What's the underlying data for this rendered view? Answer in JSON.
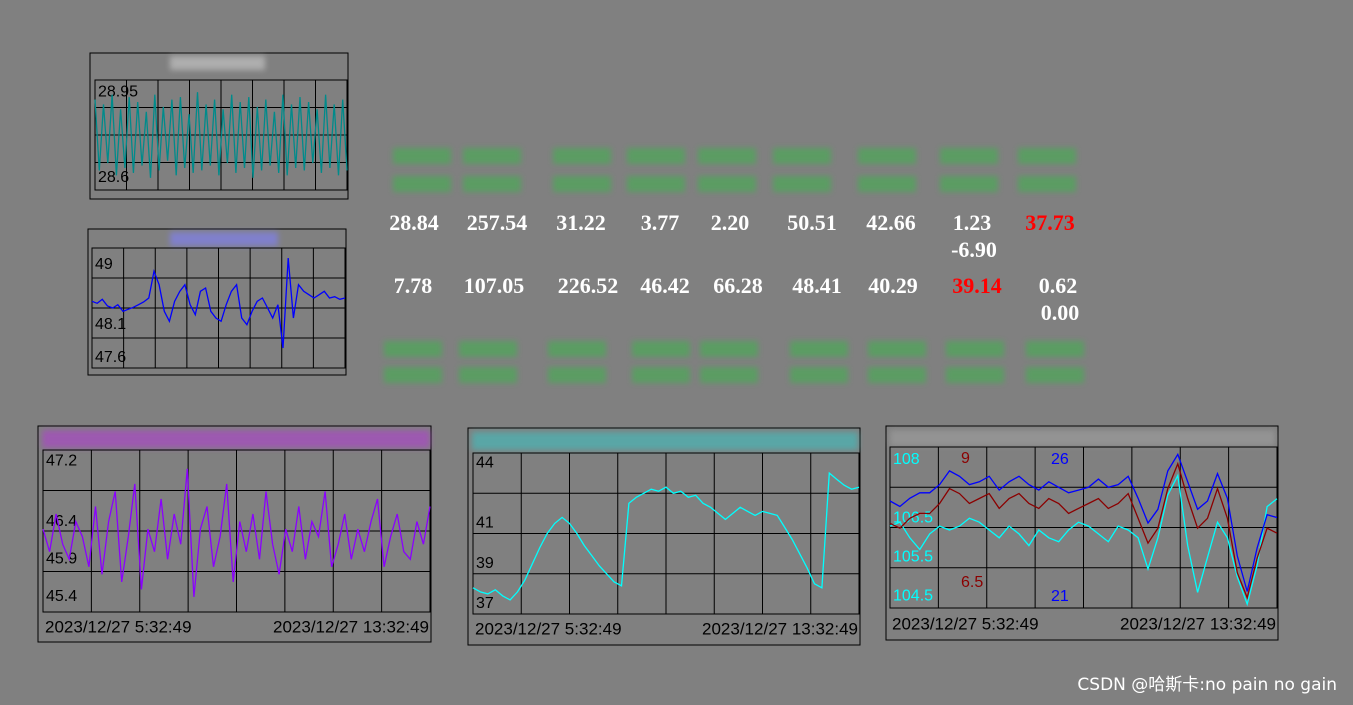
{
  "panels": [
    {
      "ylim": [
        28.55,
        29.0
      ],
      "yticks": [
        28.95,
        28.6
      ],
      "time_labels": [],
      "series": [
        {
          "color": "#008b8b",
          "values": [
            28.92,
            28.63,
            28.9,
            28.66,
            28.94,
            28.61,
            28.88,
            28.64,
            28.93,
            28.62,
            28.91,
            28.65,
            28.87,
            28.6,
            28.94,
            28.63,
            28.89,
            28.67,
            28.92,
            28.61,
            28.93,
            28.64,
            28.86,
            28.62,
            28.95,
            28.63,
            28.9,
            28.65,
            28.92,
            28.61,
            28.88,
            28.66,
            28.94,
            28.62,
            28.91,
            28.64,
            28.93,
            28.6,
            28.89,
            28.63,
            28.92,
            28.65,
            28.87,
            28.62,
            28.94,
            28.61,
            28.9,
            28.64,
            28.93,
            28.63,
            28.91,
            28.66,
            28.88,
            28.62,
            28.94,
            28.64,
            28.9,
            28.61,
            28.92,
            28.63
          ]
        }
      ]
    },
    {
      "ylim": [
        47.45,
        49.25
      ],
      "yticks": [
        49,
        48.1,
        47.6
      ],
      "time_labels": [],
      "series": [
        {
          "color": "#0000ff",
          "values": [
            48.45,
            48.42,
            48.48,
            48.38,
            48.35,
            48.4,
            48.3,
            48.33,
            48.36,
            48.4,
            48.44,
            48.5,
            48.9,
            48.7,
            48.3,
            48.15,
            48.45,
            48.6,
            48.7,
            48.4,
            48.25,
            48.6,
            48.65,
            48.3,
            48.2,
            48.15,
            48.4,
            48.6,
            48.7,
            48.2,
            48.1,
            48.3,
            48.45,
            48.5,
            48.35,
            48.2,
            48.4,
            47.75,
            49.1,
            48.2,
            48.7,
            48.6,
            48.55,
            48.5,
            48.55,
            48.6,
            48.5,
            48.52,
            48.48,
            48.5
          ]
        }
      ]
    },
    {
      "ylim": [
        45.2,
        47.35
      ],
      "yticks": [
        47.2,
        46.4,
        45.9,
        45.4
      ],
      "time_labels": [
        "2023/12/27 5:32:49",
        "2023/12/27 13:32:49"
      ],
      "series": [
        {
          "color": "#8a00ff",
          "values": [
            46.3,
            46.0,
            46.5,
            46.1,
            45.9,
            46.4,
            46.2,
            45.8,
            46.6,
            45.7,
            46.4,
            46.8,
            45.6,
            46.2,
            46.9,
            45.5,
            46.3,
            46.0,
            46.7,
            45.9,
            46.5,
            46.1,
            47.1,
            45.4,
            46.3,
            46.6,
            45.8,
            46.2,
            46.9,
            45.6,
            46.4,
            46.0,
            46.5,
            45.9,
            46.8,
            46.1,
            45.7,
            46.3,
            46.0,
            46.6,
            45.9,
            46.4,
            46.2,
            46.8,
            45.8,
            46.1,
            46.5,
            45.9,
            46.3,
            46.0,
            46.4,
            46.7,
            45.8,
            46.2,
            46.5,
            46.0,
            45.9,
            46.4,
            46.1,
            46.6
          ]
        }
      ]
    },
    {
      "ylim": [
        36.5,
        44.5
      ],
      "yticks": [
        44,
        41,
        39,
        37
      ],
      "time_labels": [
        "2023/12/27 5:32:49",
        "2023/12/27 13:32:49"
      ],
      "series": [
        {
          "color": "#00ffff",
          "values": [
            37.8,
            37.6,
            37.5,
            37.7,
            37.4,
            37.2,
            37.6,
            38.2,
            39.0,
            39.8,
            40.5,
            41.0,
            41.3,
            41.0,
            40.5,
            39.9,
            39.4,
            38.9,
            38.5,
            38.1,
            37.9,
            42.0,
            42.3,
            42.5,
            42.7,
            42.6,
            42.8,
            42.5,
            42.6,
            42.3,
            42.4,
            42.0,
            41.8,
            41.5,
            41.2,
            41.5,
            41.8,
            41.6,
            41.4,
            41.6,
            41.5,
            41.4,
            40.8,
            40.2,
            39.5,
            38.8,
            38.0,
            37.8,
            43.5,
            43.2,
            42.9,
            42.7,
            42.8
          ]
        }
      ]
    },
    {
      "time_labels": [
        "2023/12/27 5:32:49",
        "2023/12/27 13:32:49"
      ],
      "series": [
        {
          "color": "#00ffff",
          "ylim": [
            104.2,
            108.33
          ],
          "yticks": [
            108,
            106.5,
            105.5,
            104.5
          ],
          "values": [
            106.3,
            106.4,
            106.0,
            105.7,
            106.1,
            106.3,
            106.2,
            106.3,
            106.5,
            106.4,
            106.2,
            106.0,
            106.3,
            106.1,
            105.8,
            106.2,
            106.0,
            105.9,
            106.2,
            106.4,
            106.3,
            106.1,
            105.9,
            106.3,
            106.2,
            106.0,
            105.2,
            106.0,
            107.1,
            107.6,
            105.8,
            104.6,
            105.5,
            106.4,
            106.0,
            105.0,
            104.3,
            105.3,
            106.8,
            107.0
          ]
        },
        {
          "color": "#8b0000",
          "ylim": [
            5.99,
            9.24
          ],
          "yticks": [
            9,
            6.5
          ],
          "values": [
            7.7,
            7.6,
            7.8,
            7.9,
            7.9,
            8.1,
            8.4,
            8.3,
            8.1,
            8.2,
            8.3,
            8.0,
            8.2,
            8.3,
            8.1,
            8.0,
            8.2,
            8.1,
            7.9,
            8.0,
            8.1,
            8.2,
            8.0,
            8.1,
            8.3,
            7.8,
            7.3,
            7.6,
            8.4,
            8.9,
            8.2,
            7.6,
            7.8,
            8.4,
            7.8,
            6.7,
            6.2,
            7.0,
            7.6,
            7.5
          ]
        },
        {
          "color": "#0000ff",
          "ylim": [
            20.6,
            26.47
          ],
          "yticks": [
            26,
            21
          ],
          "values": [
            24.5,
            24.3,
            24.6,
            24.8,
            24.8,
            25.1,
            25.6,
            25.4,
            25.1,
            25.2,
            25.4,
            24.9,
            25.2,
            25.4,
            25.1,
            24.9,
            25.2,
            25.0,
            24.8,
            24.9,
            25.0,
            25.3,
            25.0,
            25.1,
            25.4,
            24.6,
            23.7,
            24.2,
            25.6,
            26.2,
            25.2,
            24.2,
            24.5,
            25.5,
            24.6,
            22.5,
            21.2,
            22.8,
            24.0,
            23.9
          ]
        }
      ]
    }
  ],
  "readings_top": [
    {
      "value": "28.84",
      "color": "#ffffff"
    },
    {
      "value": "257.54",
      "color": "#ffffff"
    },
    {
      "value": "31.22",
      "color": "#ffffff"
    },
    {
      "value": "3.77",
      "color": "#ffffff"
    },
    {
      "value": "2.20",
      "color": "#ffffff"
    },
    {
      "value": "50.51",
      "color": "#ffffff"
    },
    {
      "value": "42.66",
      "color": "#ffffff"
    },
    {
      "value": "1.23",
      "color": "#ffffff",
      "extra": "-6.90"
    },
    {
      "value": "37.73",
      "color": "#ff0000"
    }
  ],
  "readings_bottom": [
    {
      "value": "7.78",
      "color": "#ffffff"
    },
    {
      "value": "107.05",
      "color": "#ffffff"
    },
    {
      "value": "226.52",
      "color": "#ffffff"
    },
    {
      "value": "46.42",
      "color": "#ffffff"
    },
    {
      "value": "66.28",
      "color": "#ffffff"
    },
    {
      "value": "48.41",
      "color": "#ffffff"
    },
    {
      "value": "40.29",
      "color": "#ffffff"
    },
    {
      "value": "39.14",
      "color": "#ff0000"
    },
    {
      "value": "0.62",
      "color": "#ffffff",
      "extra": "0.00"
    }
  ],
  "watermark": "CSDN @哈斯卡:no pain no gain"
}
